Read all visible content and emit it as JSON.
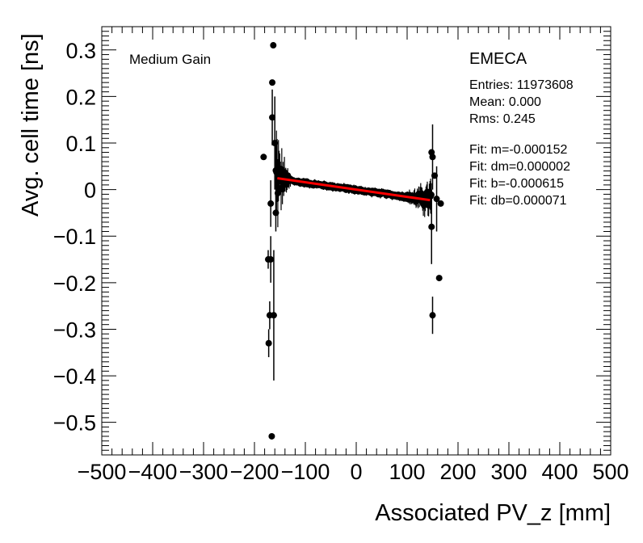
{
  "chart_data": {
    "type": "scatter",
    "title": "",
    "xlabel": "Associated PV_z [mm]",
    "ylabel": "Avg. cell time [ns]",
    "xlim": [
      -500,
      500
    ],
    "ylim": [
      -0.57,
      0.35
    ],
    "x_ticks": [
      -500,
      -400,
      -300,
      -200,
      -100,
      0,
      100,
      200,
      300,
      400,
      500
    ],
    "x_tick_labels": [
      "−500",
      "−400",
      "−300",
      "−200",
      "−100",
      "0",
      "100",
      "200",
      "300",
      "400",
      "500"
    ],
    "y_ticks": [
      0.3,
      0.2,
      0.1,
      0,
      -0.1,
      -0.2,
      -0.3,
      -0.4,
      -0.5
    ],
    "y_tick_labels": [
      "0.3",
      "0.2",
      "0.1",
      "0",
      "−0.1",
      "−0.2",
      "−0.3",
      "−0.4",
      "−0.5"
    ],
    "grid": false,
    "gain_label": "Medium Gain",
    "stats": {
      "title": "EMECA",
      "lines": [
        "Entries: 11973608",
        "Mean: 0.000",
        "Rms: 0.245",
        "",
        "Fit: m=-0.000152",
        "Fit: dm=0.000002",
        "Fit: b=-0.000615",
        "Fit: db=0.000071"
      ]
    },
    "fit": {
      "m": -0.000152,
      "b": -0.000615,
      "x_range": [
        -155,
        145
      ],
      "color": "#ff0000"
    },
    "outliers": [
      {
        "x": -182,
        "y": 0.07,
        "err": 0.0
      },
      {
        "x": -173,
        "y": -0.15,
        "err": 0.02
      },
      {
        "x": -170,
        "y": -0.27,
        "err": 0.03
      },
      {
        "x": -172,
        "y": -0.33,
        "err": 0.03
      },
      {
        "x": -168,
        "y": -0.15,
        "err": 0.05
      },
      {
        "x": -168,
        "y": -0.03,
        "err": 0.05
      },
      {
        "x": -166,
        "y": -0.53,
        "err": 0.0
      },
      {
        "x": -165,
        "y": 0.23,
        "err": 0.0
      },
      {
        "x": -165,
        "y": 0.155,
        "err": 0.06
      },
      {
        "x": -163,
        "y": 0.31,
        "err": 0.0
      },
      {
        "x": -162,
        "y": -0.27,
        "err": 0.14
      },
      {
        "x": -160,
        "y": 0.1,
        "err": 0.1
      },
      {
        "x": -158,
        "y": -0.05,
        "err": 0.04
      },
      {
        "x": 148,
        "y": 0.08,
        "err": 0.0
      },
      {
        "x": 150,
        "y": 0.07,
        "err": 0.07
      },
      {
        "x": 148,
        "y": -0.08,
        "err": 0.08
      },
      {
        "x": 150,
        "y": -0.27,
        "err": 0.04
      },
      {
        "x": 154,
        "y": 0.03,
        "err": 0.0
      },
      {
        "x": 158,
        "y": -0.02,
        "err": 0.07
      },
      {
        "x": 163,
        "y": -0.19,
        "err": 0.0
      },
      {
        "x": 166,
        "y": -0.03,
        "err": 0.0
      }
    ],
    "marker_color": "#000000",
    "background": "#ffffff"
  }
}
